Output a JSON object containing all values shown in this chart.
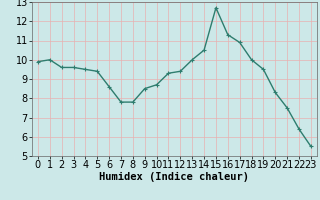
{
  "x": [
    0,
    1,
    2,
    3,
    4,
    5,
    6,
    7,
    8,
    9,
    10,
    11,
    12,
    13,
    14,
    15,
    16,
    17,
    18,
    19,
    20,
    21,
    22,
    23
  ],
  "y": [
    9.9,
    10.0,
    9.6,
    9.6,
    9.5,
    9.4,
    8.6,
    7.8,
    7.8,
    8.5,
    8.7,
    9.3,
    9.4,
    10.0,
    10.5,
    12.7,
    11.3,
    10.9,
    10.0,
    9.5,
    8.3,
    7.5,
    6.4,
    5.5
  ],
  "line_color": "#2e7d6e",
  "marker": "+",
  "marker_size": 3,
  "line_width": 1.0,
  "xlabel": "Humidex (Indice chaleur)",
  "xlim": [
    -0.5,
    23.5
  ],
  "ylim": [
    5,
    13
  ],
  "yticks": [
    5,
    6,
    7,
    8,
    9,
    10,
    11,
    12,
    13
  ],
  "xticks": [
    0,
    1,
    2,
    3,
    4,
    5,
    6,
    7,
    8,
    9,
    10,
    11,
    12,
    13,
    14,
    15,
    16,
    17,
    18,
    19,
    20,
    21,
    22,
    23
  ],
  "bg_color": "#cce8e8",
  "grid_color_v": "#e8b0b0",
  "grid_color_h": "#e8b0b0",
  "font_size": 7,
  "xlabel_fontsize": 7.5
}
